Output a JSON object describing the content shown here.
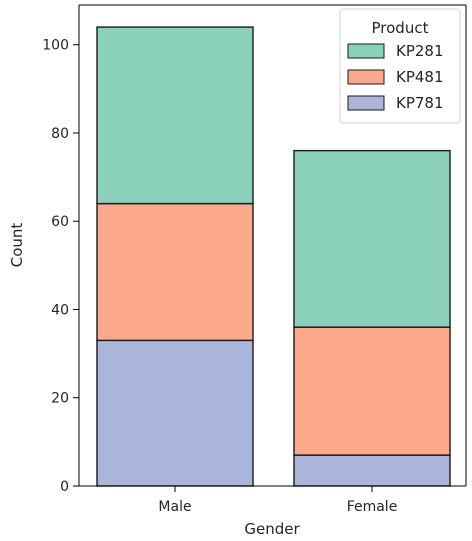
{
  "chart_data": {
    "type": "bar",
    "stacked": true,
    "categories": [
      "Male",
      "Female"
    ],
    "series": [
      {
        "name": "KP781",
        "values": [
          33,
          7
        ],
        "color": "#a9b6d9"
      },
      {
        "name": "KP481",
        "values": [
          31,
          29
        ],
        "color": "#fba98a"
      },
      {
        "name": "KP281",
        "values": [
          40,
          40
        ],
        "color": "#8ad0bb"
      }
    ],
    "totals": [
      104,
      76
    ],
    "xlabel": "Gender",
    "ylabel": "Count",
    "ylim": [
      0,
      109
    ],
    "yticks": [
      0,
      20,
      40,
      60,
      80,
      100
    ],
    "grid": false,
    "legend": {
      "title": "Product",
      "placement": "top-right",
      "entries": [
        "KP281",
        "KP481",
        "KP781"
      ]
    }
  }
}
